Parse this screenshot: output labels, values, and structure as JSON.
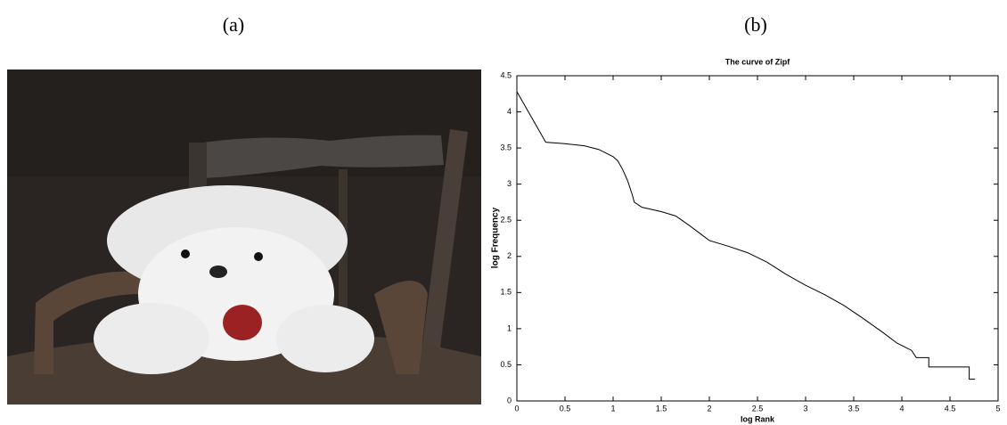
{
  "panel_labels": [
    "(a)",
    "(b)"
  ],
  "chart_data": {
    "type": "line",
    "title": "The curve of Zipf",
    "x_label": "log Rank",
    "y_label": "log Frequency",
    "x": [
      0,
      0.3,
      0.5,
      0.7,
      0.85,
      1.0,
      1.05,
      1.1,
      1.15,
      1.2,
      1.22,
      1.3,
      1.5,
      1.65,
      1.8,
      1.9,
      2.0,
      2.2,
      2.4,
      2.6,
      2.8,
      3.0,
      3.2,
      3.4,
      3.6,
      3.8,
      3.95,
      4.1,
      4.15,
      4.28,
      4.28,
      4.7,
      4.7,
      4.76
    ],
    "series": [
      {
        "color": "#000000",
        "values": [
          4.28,
          3.58,
          3.56,
          3.53,
          3.48,
          3.38,
          3.32,
          3.2,
          3.05,
          2.85,
          2.75,
          2.68,
          2.62,
          2.56,
          2.42,
          2.32,
          2.22,
          2.14,
          2.05,
          1.92,
          1.75,
          1.6,
          1.47,
          1.32,
          1.14,
          0.95,
          0.8,
          0.7,
          0.6,
          0.6,
          0.47,
          0.47,
          0.3,
          0.3
        ]
      }
    ],
    "xlim": [
      0,
      5
    ],
    "xticks": [
      0,
      0.5,
      1,
      1.5,
      2,
      2.5,
      3,
      3.5,
      4,
      4.5,
      5
    ],
    "ylim": [
      0,
      4.5
    ],
    "yticks": [
      0,
      0.5,
      1,
      1.5,
      2,
      2.5,
      3,
      3.5,
      4,
      4.5
    ],
    "grid": false
  }
}
